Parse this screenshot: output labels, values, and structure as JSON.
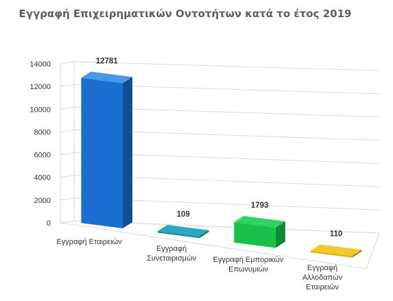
{
  "chart_data": {
    "type": "bar",
    "title": "Εγγραφή Επιχειρηματικών Οντοτήτων κατά το έτος 2019",
    "categories": [
      "Εγγραφή Εταιρειών",
      "Εγγραφή Συνεταιρισμών",
      "Εγγραφή Εμπορικών Επωνυμιών",
      "Εγγραφή Αλλοδαπών Εταιρειών"
    ],
    "category_lines": [
      [
        "Εγγραφή Εταιρειών"
      ],
      [
        "Εγγραφή",
        "Συνεταιρισμών"
      ],
      [
        "Εγγραφή Εμπορικών",
        "Επωνυμιών"
      ],
      [
        "Εγγραφή",
        "Αλλοδαπών",
        "Εταιρειών"
      ]
    ],
    "values": [
      12781,
      109,
      1793,
      110
    ],
    "data_labels": [
      "12781",
      "109",
      "1793",
      "110"
    ],
    "yticks": [
      "0",
      "2000",
      "4000",
      "6000",
      "8000",
      "10000",
      "12000",
      "14000"
    ],
    "ylim": [
      0,
      14000
    ],
    "grid": true,
    "legend": "none",
    "style": "3d-column",
    "colors": {
      "bars": [
        {
          "front": "#1a6fd0",
          "side": "#0e4e96",
          "top": "#4c95e6"
        },
        {
          "front": "#1b8aa3",
          "side": "#116173",
          "top": "#2ba7bf"
        },
        {
          "front": "#19c04a",
          "side": "#0e8a33",
          "top": "#2fd35f"
        },
        {
          "front": "#e2b410",
          "side": "#a88405",
          "top": "#f0c92e"
        }
      ],
      "grid": "#d9d9d9",
      "text": "#333333",
      "title": "#5f5f5f"
    }
  }
}
